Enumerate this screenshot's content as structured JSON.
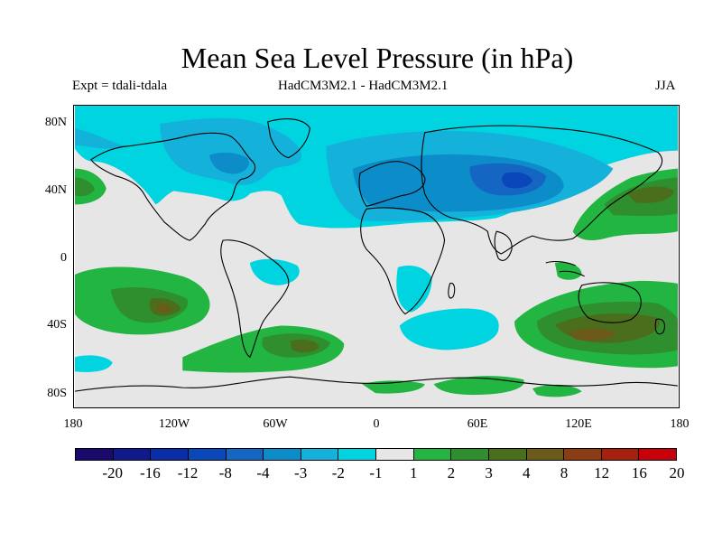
{
  "title": "Mean Sea Level Pressure (in hPa)",
  "subtitle_left": "Expt = tdali-tdala",
  "subtitle_center": "HadCM3M2.1 - HadCM3M2.1",
  "subtitle_right": "JJA",
  "y_axis_labels": [
    "80N",
    "40N",
    "0",
    "40S",
    "80S"
  ],
  "x_axis_labels": [
    "180",
    "120W",
    "60W",
    "0",
    "60E",
    "120E",
    "180"
  ],
  "colorbar": {
    "labels": [
      "-20",
      "-16",
      "-12",
      "-8",
      "-4",
      "-3",
      "-2",
      "-1",
      "1",
      "2",
      "3",
      "4",
      "8",
      "12",
      "16",
      "20"
    ],
    "colors": [
      "#1a0a6b",
      "#0f1a8c",
      "#0a2ea8",
      "#0a47b8",
      "#1566c2",
      "#0c8cc8",
      "#14b2da",
      "#00d4e0",
      "#e6e6e6",
      "#22b541",
      "#2f8f2f",
      "#4a6e1c",
      "#6b5a19",
      "#8a3d14",
      "#a5200f",
      "#c8000a"
    ]
  },
  "palette": {
    "neutral": "#e6e6e6",
    "cyan": "#00d4e0",
    "lightblue": "#14b2da",
    "blue": "#0c8cc8",
    "darkblue": "#1566c2",
    "navy": "#0a47b8",
    "green": "#22b541",
    "darkgreen": "#2f8f2f",
    "olive": "#4a6e1c",
    "brown": "#6b5a19"
  }
}
